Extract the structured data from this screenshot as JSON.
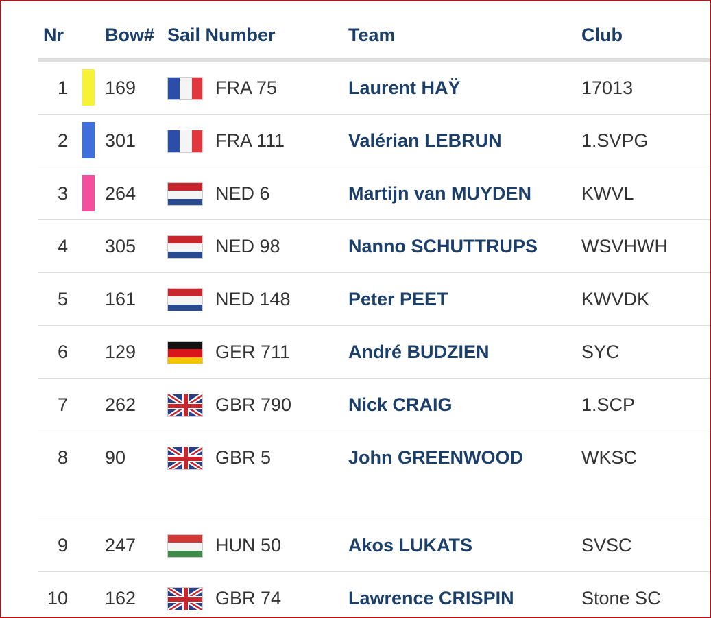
{
  "table": {
    "header": [
      "Nr",
      "Bow#",
      "Sail Number",
      "Team",
      "Club"
    ],
    "rows": [
      [
        "1",
        "169",
        "FRA 75",
        "Laurent HAŸ",
        "17013"
      ],
      [
        "2",
        "301",
        "FRA 111",
        "Valérian LEBRUN",
        "1.SVPG"
      ],
      [
        "3",
        "264",
        "NED 6",
        "Martijn van MUYDEN",
        "KWVL"
      ],
      [
        "4",
        "305",
        "NED 98",
        "Nanno SCHUTTRUPS",
        "WSVHWH"
      ],
      [
        "5",
        "161",
        "NED 148",
        "Peter PEET",
        "KWVDK"
      ],
      [
        "6",
        "129",
        "GER 711",
        "André BUDZIEN",
        "SYC"
      ],
      [
        "7",
        "262",
        "GBR 790",
        "Nick CRAIG",
        "1.SCP"
      ],
      [
        "8",
        "90",
        "GBR 5",
        "John GREENWOOD",
        "WKSC"
      ],
      [
        "9",
        "247",
        "HUN 50",
        "Akos LUKATS",
        "SVSC"
      ],
      [
        "10",
        "162",
        "GBR 74",
        "Lawrence CRISPIN",
        "Stone SC"
      ]
    ]
  }
}
